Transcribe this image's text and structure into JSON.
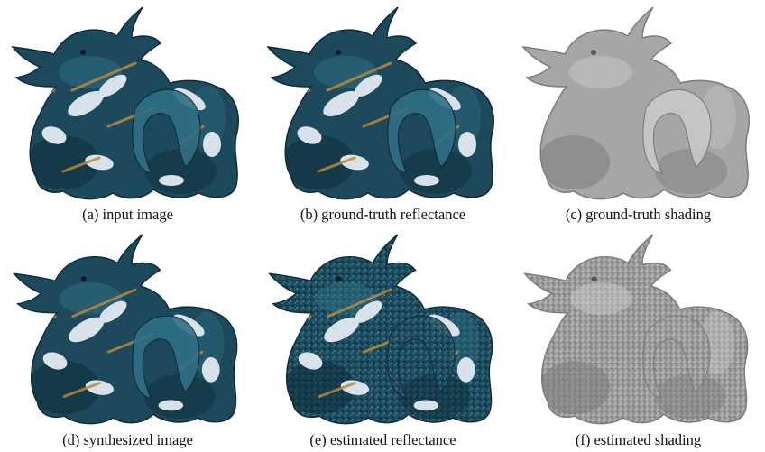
{
  "figure": {
    "panels": [
      {
        "caption": "(a)  input image",
        "kind": "color"
      },
      {
        "caption": "(b)  ground-truth reflectance",
        "kind": "reflectance"
      },
      {
        "caption": "(c)  ground-truth shading",
        "kind": "shading-smooth"
      },
      {
        "caption": "(d)  synthesized image",
        "kind": "color"
      },
      {
        "caption": "(e)  estimated reflectance",
        "kind": "reflectance-noisy"
      },
      {
        "caption": "(f)  estimated shading",
        "kind": "shading-noisy"
      }
    ],
    "colors": {
      "dragon_base": "#1c4a5c",
      "dragon_dark": "#0f2c39",
      "dragon_light": "#2f6f86",
      "white_patch": "#d9e1ea",
      "gold_streak": "#b8893a",
      "shading_base": "#a6a6a6",
      "shading_dark": "#7c7c7c",
      "shading_light": "#c9c9c9"
    }
  }
}
